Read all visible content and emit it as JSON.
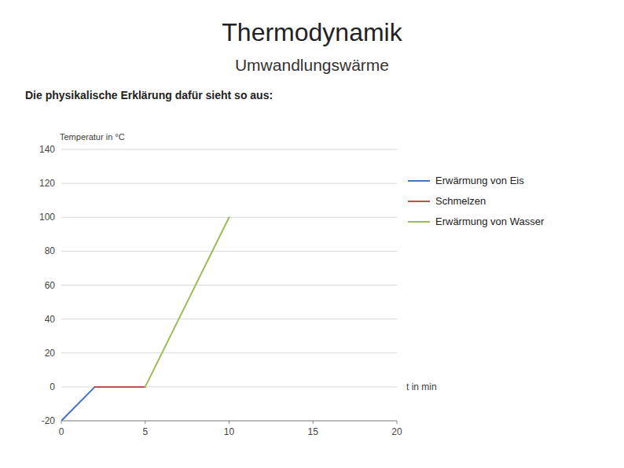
{
  "chart_data": {
    "type": "line",
    "title": "Thermodynamik",
    "subtitle": "Umwandlungswärme",
    "annotations": [
      "Die physikalische Erklärung dafür sieht so aus:"
    ],
    "y_label": "Temperatur in °C",
    "x_label": "t in min",
    "xlim": [
      0,
      20
    ],
    "ylim": [
      -20,
      140
    ],
    "xticks": [
      0,
      5,
      10,
      15,
      20
    ],
    "yticks": [
      -20,
      0,
      20,
      40,
      60,
      80,
      100,
      120,
      140
    ],
    "grid": true,
    "legend": "right",
    "series": [
      {
        "name": "Erwärmung von Eis",
        "color": "#4472c4",
        "x": [
          0,
          2
        ],
        "values": [
          -20,
          0
        ]
      },
      {
        "name": "Schmelzen",
        "color": "#c0504d",
        "x": [
          2,
          5
        ],
        "values": [
          0,
          0
        ]
      },
      {
        "name": "Erwärmung von Wasser",
        "color": "#9bbb59",
        "x": [
          5,
          10
        ],
        "values": [
          0,
          100
        ]
      }
    ]
  }
}
